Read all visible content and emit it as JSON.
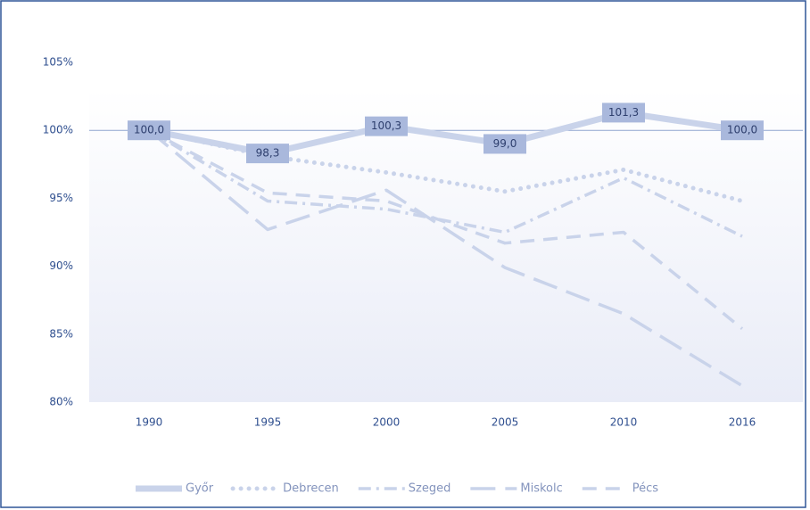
{
  "chart_data": {
    "type": "line",
    "categories": [
      "1990",
      "1995",
      "2000",
      "2005",
      "2010",
      "2016"
    ],
    "series": [
      {
        "name": "Győr",
        "color": "#c9d3ea",
        "dash": "solid",
        "values": [
          100.0,
          98.3,
          100.3,
          99.0,
          101.3,
          100.0
        ],
        "value_labels": [
          "100,0",
          "98,3",
          "100,3",
          "99,0",
          "101,3",
          "100,0"
        ]
      },
      {
        "name": "Debrecen",
        "color": "#c9d3ea",
        "dash": "dot",
        "values": [
          100,
          98.1,
          96.9,
          95.5,
          97.1,
          94.8
        ]
      },
      {
        "name": "Szeged",
        "color": "#c9d3ea",
        "dash": "dashdot",
        "values": [
          100,
          94.8,
          94.2,
          92.5,
          96.5,
          92.2
        ]
      },
      {
        "name": "Miskolc",
        "color": "#c9d3ea",
        "dash": "longdash",
        "values": [
          100,
          92.7,
          95.6,
          89.9,
          86.5,
          81.2
        ]
      },
      {
        "name": "Pécs",
        "color": "#c9d3ea",
        "dash": "dash",
        "values": [
          100,
          95.4,
          94.8,
          91.7,
          92.5,
          85.4
        ]
      }
    ],
    "ylim": [
      80,
      105
    ],
    "yticks": [
      {
        "value": 80,
        "label": "80%"
      },
      {
        "value": 85,
        "label": "85%"
      },
      {
        "value": 90,
        "label": "90%"
      },
      {
        "value": 95,
        "label": "95%"
      },
      {
        "value": 100,
        "label": "100%"
      },
      {
        "value": 105,
        "label": "105%"
      }
    ],
    "reference_line": 100,
    "grid": false,
    "legend": "bottom"
  }
}
